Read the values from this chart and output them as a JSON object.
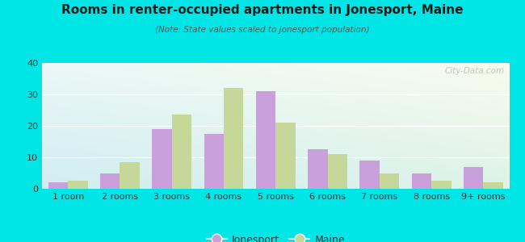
{
  "title": "Rooms in renter-occupied apartments in Jonesport, Maine",
  "subtitle": "(Note: State values scaled to Jonesport population)",
  "categories": [
    "1 room",
    "2 rooms",
    "3 rooms",
    "4 rooms",
    "5 rooms",
    "6 rooms",
    "7 rooms",
    "8 rooms",
    "9+ rooms"
  ],
  "jonesport": [
    2,
    5,
    19,
    17.5,
    31,
    12.5,
    9,
    5,
    7
  ],
  "maine": [
    2.5,
    8.5,
    23.5,
    32,
    21,
    11,
    5,
    2.5,
    2
  ],
  "jonesport_color": "#c9a0dc",
  "maine_color": "#c5d89a",
  "background_color": "#00e5e5",
  "ylim": [
    0,
    40
  ],
  "yticks": [
    0,
    10,
    20,
    30,
    40
  ],
  "bar_width": 0.38,
  "legend_labels": [
    "Jonesport",
    "Maine"
  ],
  "watermark": "City-Data.com"
}
